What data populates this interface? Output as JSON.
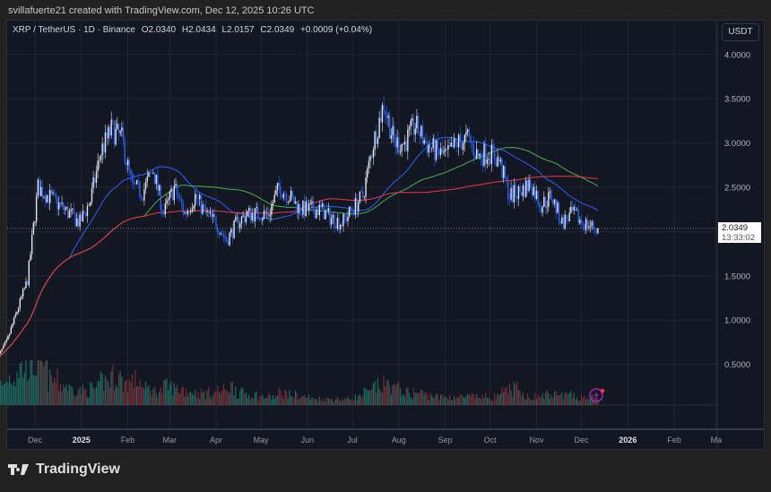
{
  "credit": "svillafuerte21 created with TradingView.com, Dec 12, 2025 10:26 UTC",
  "legend": {
    "symbol": "XRP / TetherUS · 1D · Binance",
    "open": "O2.0340",
    "high": "H2.0434",
    "low": "L2.0157",
    "close": "C2.0349",
    "change": "+0.0009 (+0.04%)"
  },
  "currency_button": "USDT",
  "last_price": {
    "value": "2.0349",
    "countdown": "13:33:02"
  },
  "logo_text": "TradingView",
  "colors": {
    "background": "#131722",
    "up": "#e6e6e6",
    "down": "#2962ff",
    "ma_fast": "#2962ff",
    "ma_mid": "#4caf50",
    "ma_slow": "#f23645",
    "vol_up": "#1f6b63",
    "vol_down": "#7a2e36",
    "alert": "#9c27b0"
  },
  "chart_data": {
    "type": "candlestick",
    "interval": "1D",
    "ylim": [
      0,
      4.6
    ],
    "y_ticks": [
      "4.0000",
      "3.5000",
      "3.0000",
      "2.5000",
      "1.5000",
      "1.0000",
      "0.5000"
    ],
    "x_ticks": [
      {
        "label": "Dec",
        "date": "2024-12-01"
      },
      {
        "label": "2025",
        "date": "2025-01-01",
        "bold": true
      },
      {
        "label": "Feb",
        "date": "2025-02-01"
      },
      {
        "label": "Mar",
        "date": "2025-03-01"
      },
      {
        "label": "Apr",
        "date": "2025-04-01"
      },
      {
        "label": "May",
        "date": "2025-05-01"
      },
      {
        "label": "Jun",
        "date": "2025-06-01"
      },
      {
        "label": "Jul",
        "date": "2025-07-01"
      },
      {
        "label": "Aug",
        "date": "2025-08-01"
      },
      {
        "label": "Sep",
        "date": "2025-09-01"
      },
      {
        "label": "Oct",
        "date": "2025-10-01"
      },
      {
        "label": "Nov",
        "date": "2025-11-01"
      },
      {
        "label": "Dec",
        "date": "2025-12-01"
      },
      {
        "label": "2026",
        "date": "2026-01-01",
        "bold": true
      },
      {
        "label": "Feb",
        "date": "2026-02-01"
      },
      {
        "label": "Ma",
        "date": "2026-03-01"
      }
    ],
    "moving_averages": [
      {
        "period": 50,
        "color": "#2962ff"
      },
      {
        "period": 100,
        "color": "#4caf50"
      },
      {
        "period": 200,
        "color": "#f23645"
      }
    ],
    "weekly_closes": [
      [
        "2024-11-05",
        0.55
      ],
      [
        "2024-11-12",
        0.75
      ],
      [
        "2024-11-19",
        1.1
      ],
      [
        "2024-11-26",
        1.45
      ],
      [
        "2024-12-03",
        2.5
      ],
      [
        "2024-12-10",
        2.4
      ],
      [
        "2024-12-17",
        2.3
      ],
      [
        "2024-12-24",
        2.2
      ],
      [
        "2024-12-31",
        2.1
      ],
      [
        "2025-01-07",
        2.35
      ],
      [
        "2025-01-14",
        2.9
      ],
      [
        "2025-01-21",
        3.15
      ],
      [
        "2025-01-28",
        3.05
      ],
      [
        "2025-02-04",
        2.5
      ],
      [
        "2025-02-11",
        2.45
      ],
      [
        "2025-02-18",
        2.7
      ],
      [
        "2025-02-25",
        2.2
      ],
      [
        "2025-03-04",
        2.5
      ],
      [
        "2025-03-11",
        2.2
      ],
      [
        "2025-03-18",
        2.4
      ],
      [
        "2025-03-25",
        2.2
      ],
      [
        "2025-04-01",
        2.1
      ],
      [
        "2025-04-08",
        1.9
      ],
      [
        "2025-04-15",
        2.1
      ],
      [
        "2025-04-22",
        2.2
      ],
      [
        "2025-04-29",
        2.2
      ],
      [
        "2025-05-06",
        2.2
      ],
      [
        "2025-05-13",
        2.5
      ],
      [
        "2025-05-20",
        2.4
      ],
      [
        "2025-05-27",
        2.25
      ],
      [
        "2025-06-03",
        2.25
      ],
      [
        "2025-06-10",
        2.25
      ],
      [
        "2025-06-17",
        2.15
      ],
      [
        "2025-06-24",
        2.1
      ],
      [
        "2025-07-01",
        2.25
      ],
      [
        "2025-07-08",
        2.4
      ],
      [
        "2025-07-15",
        3.0
      ],
      [
        "2025-07-22",
        3.45
      ],
      [
        "2025-07-29",
        3.0
      ],
      [
        "2025-08-05",
        3.0
      ],
      [
        "2025-08-12",
        3.2
      ],
      [
        "2025-08-19",
        3.0
      ],
      [
        "2025-08-26",
        2.9
      ],
      [
        "2025-09-02",
        2.85
      ],
      [
        "2025-09-09",
        3.0
      ],
      [
        "2025-09-16",
        3.05
      ],
      [
        "2025-09-23",
        2.85
      ],
      [
        "2025-09-30",
        2.9
      ],
      [
        "2025-10-07",
        2.8
      ],
      [
        "2025-10-14",
        2.4
      ],
      [
        "2025-10-21",
        2.45
      ],
      [
        "2025-10-28",
        2.55
      ],
      [
        "2025-11-04",
        2.3
      ],
      [
        "2025-11-11",
        2.4
      ],
      [
        "2025-11-18",
        2.1
      ],
      [
        "2025-11-25",
        2.2
      ],
      [
        "2025-12-02",
        2.1
      ],
      [
        "2025-12-09",
        2.05
      ],
      [
        "2025-12-12",
        2.0349
      ]
    ],
    "weekly_volume_relative": [
      0.5,
      0.7,
      0.9,
      1.0,
      0.9,
      0.6,
      0.5,
      0.4,
      0.35,
      0.4,
      0.6,
      0.7,
      0.55,
      0.6,
      0.4,
      0.35,
      0.45,
      0.4,
      0.35,
      0.3,
      0.3,
      0.35,
      0.45,
      0.3,
      0.25,
      0.2,
      0.2,
      0.3,
      0.25,
      0.2,
      0.15,
      0.15,
      0.15,
      0.15,
      0.2,
      0.3,
      0.45,
      0.5,
      0.4,
      0.3,
      0.3,
      0.25,
      0.2,
      0.2,
      0.2,
      0.2,
      0.2,
      0.2,
      0.3,
      0.4,
      0.25,
      0.2,
      0.25,
      0.25,
      0.25,
      0.2,
      0.2,
      0.15,
      0.15
    ]
  }
}
